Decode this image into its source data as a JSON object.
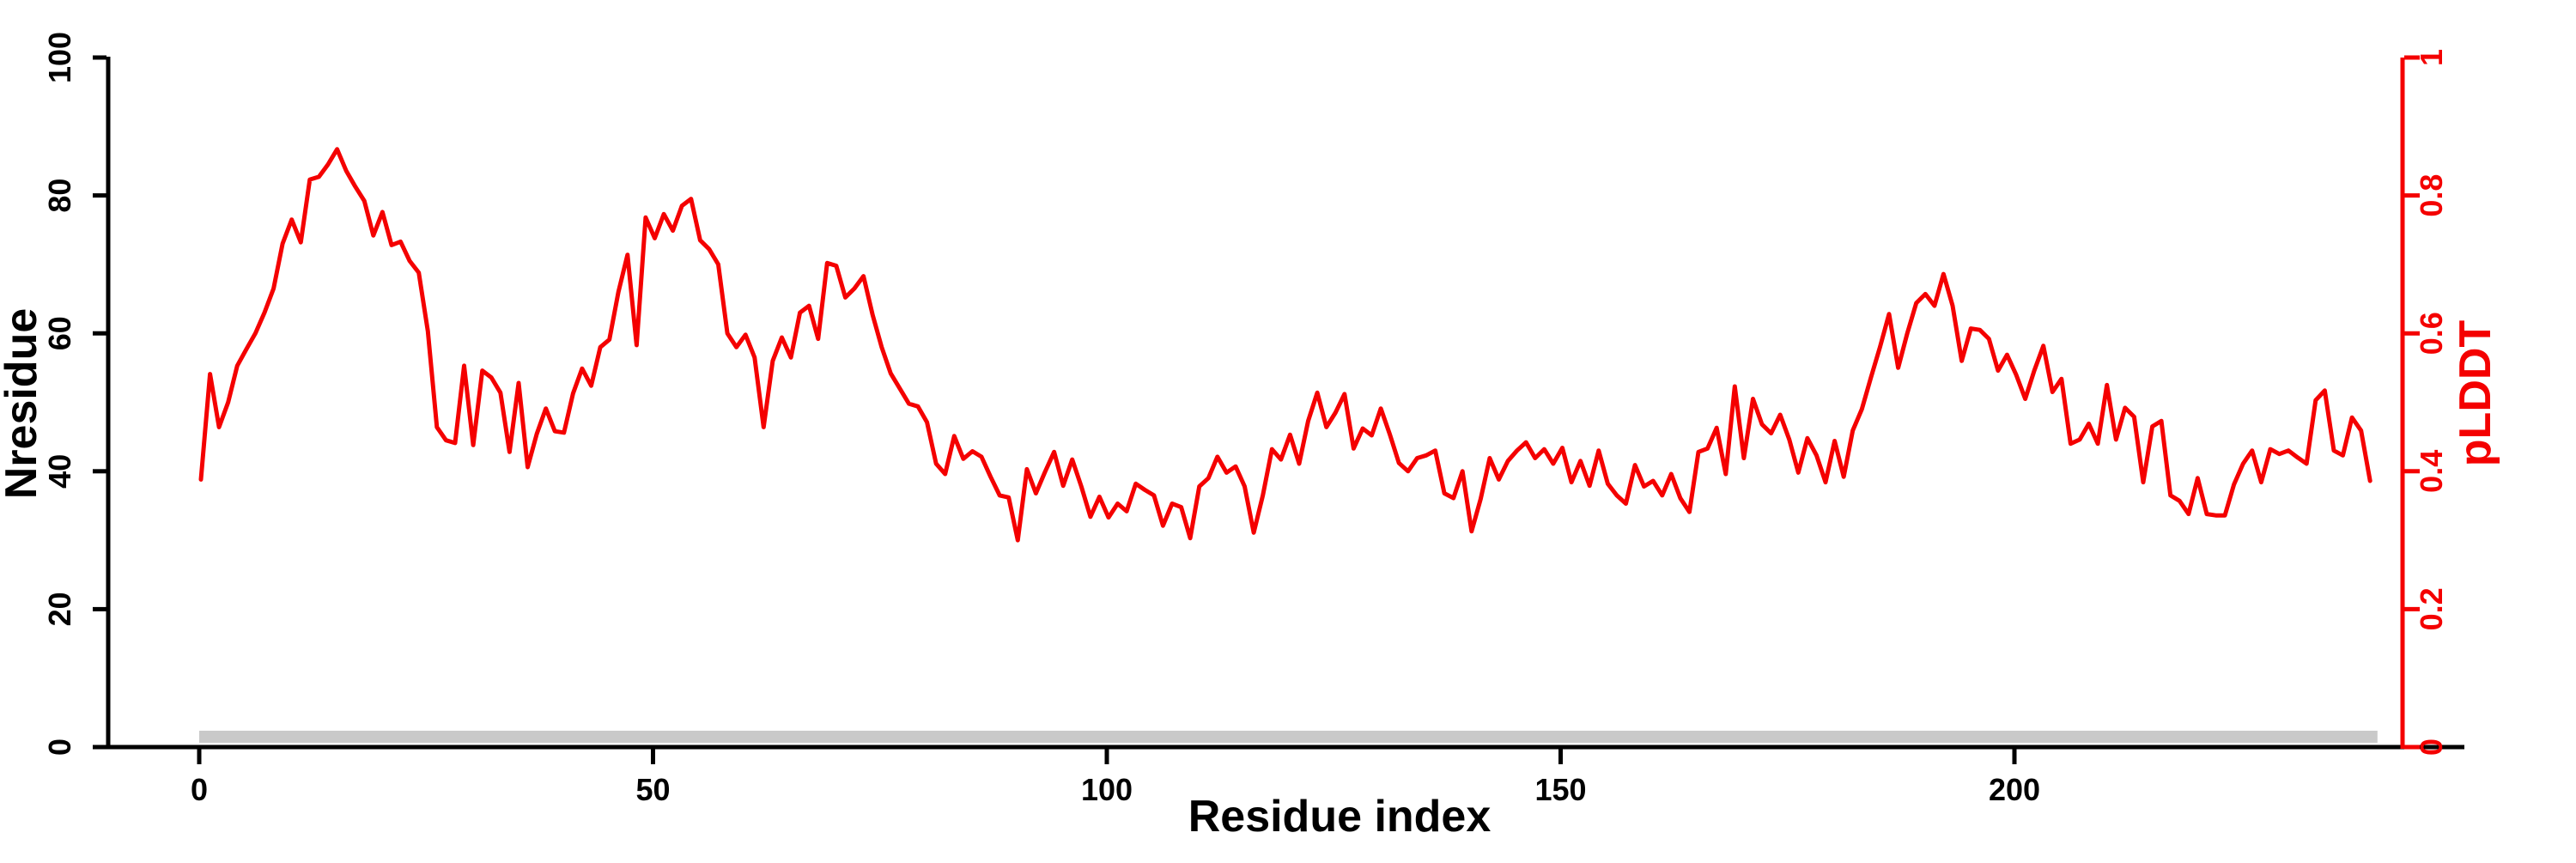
{
  "chart_data": {
    "type": "line",
    "title": "",
    "xlabel": "Residue index",
    "ylabel_left": "Nresidue",
    "ylabel_right": "pLDDT",
    "x_ticks": [
      0,
      50,
      100,
      150,
      200
    ],
    "xlim": [
      0,
      243
    ],
    "y_ticks_left": [
      0,
      20,
      40,
      60,
      80,
      100
    ],
    "ylim_left": [
      0,
      100
    ],
    "y_ticks_right": [
      0,
      0.2,
      0.4,
      0.6,
      0.8,
      1
    ],
    "ylim_right": [
      0,
      1
    ],
    "grid": "off",
    "legend": "none",
    "line_color": "#f40000",
    "axis_color_left": "#000000",
    "axis_color_right": "#f40000",
    "gray_band": {
      "x_start": 0,
      "x_end": 240,
      "y_bottom_left_axis": 0,
      "y_top_left_axis": 2,
      "color": "#c9c9c9"
    },
    "series": [
      {
        "name": "pLDDT",
        "x_start_residue": 0,
        "x_step": 1,
        "values_plddt": [
          0.388,
          0.541,
          0.464,
          0.5,
          0.553,
          0.577,
          0.6,
          0.63,
          0.665,
          0.73,
          0.765,
          0.732,
          0.823,
          0.827,
          0.845,
          0.867,
          0.836,
          0.813,
          0.792,
          0.742,
          0.776,
          0.728,
          0.733,
          0.705,
          0.688,
          0.603,
          0.464,
          0.445,
          0.441,
          0.553,
          0.438,
          0.546,
          0.536,
          0.514,
          0.428,
          0.528,
          0.406,
          0.454,
          0.491,
          0.458,
          0.456,
          0.513,
          0.549,
          0.524,
          0.58,
          0.591,
          0.66,
          0.714,
          0.583,
          0.768,
          0.738,
          0.773,
          0.749,
          0.785,
          0.795,
          0.735,
          0.722,
          0.7,
          0.6,
          0.58,
          0.598,
          0.565,
          0.464,
          0.56,
          0.594,
          0.565,
          0.63,
          0.64,
          0.592,
          0.702,
          0.698,
          0.652,
          0.665,
          0.683,
          0.627,
          0.58,
          0.542,
          0.52,
          0.498,
          0.494,
          0.471,
          0.411,
          0.396,
          0.451,
          0.418,
          0.429,
          0.421,
          0.392,
          0.365,
          0.362,
          0.3,
          0.403,
          0.368,
          0.399,
          0.428,
          0.379,
          0.417,
          0.378,
          0.334,
          0.363,
          0.333,
          0.353,
          0.342,
          0.382,
          0.373,
          0.365,
          0.321,
          0.353,
          0.348,
          0.303,
          0.378,
          0.39,
          0.421,
          0.398,
          0.407,
          0.378,
          0.311,
          0.365,
          0.432,
          0.417,
          0.453,
          0.411,
          0.473,
          0.514,
          0.464,
          0.485,
          0.512,
          0.433,
          0.462,
          0.452,
          0.491,
          0.453,
          0.412,
          0.4,
          0.419,
          0.423,
          0.43,
          0.368,
          0.361,
          0.4,
          0.313,
          0.36,
          0.419,
          0.388,
          0.415,
          0.43,
          0.442,
          0.419,
          0.432,
          0.411,
          0.434,
          0.384,
          0.415,
          0.379,
          0.43,
          0.382,
          0.365,
          0.353,
          0.409,
          0.378,
          0.386,
          0.365,
          0.396,
          0.361,
          0.341,
          0.428,
          0.433,
          0.463,
          0.396,
          0.523,
          0.419,
          0.505,
          0.468,
          0.455,
          0.482,
          0.446,
          0.398,
          0.448,
          0.423,
          0.384,
          0.444,
          0.392,
          0.459,
          0.49,
          0.536,
          0.58,
          0.628,
          0.55,
          0.6,
          0.644,
          0.657,
          0.64,
          0.686,
          0.64,
          0.56,
          0.607,
          0.605,
          0.592,
          0.546,
          0.569,
          0.54,
          0.505,
          0.546,
          0.582,
          0.515,
          0.534,
          0.44,
          0.446,
          0.469,
          0.44,
          0.525,
          0.446,
          0.492,
          0.479,
          0.384,
          0.465,
          0.473,
          0.365,
          0.357,
          0.338,
          0.39,
          0.338,
          0.336,
          0.336,
          0.381,
          0.411,
          0.43,
          0.384,
          0.432,
          0.425,
          0.43,
          0.42,
          0.411,
          0.503,
          0.517,
          0.43,
          0.423,
          0.478,
          0.459,
          0.386
        ]
      }
    ]
  }
}
